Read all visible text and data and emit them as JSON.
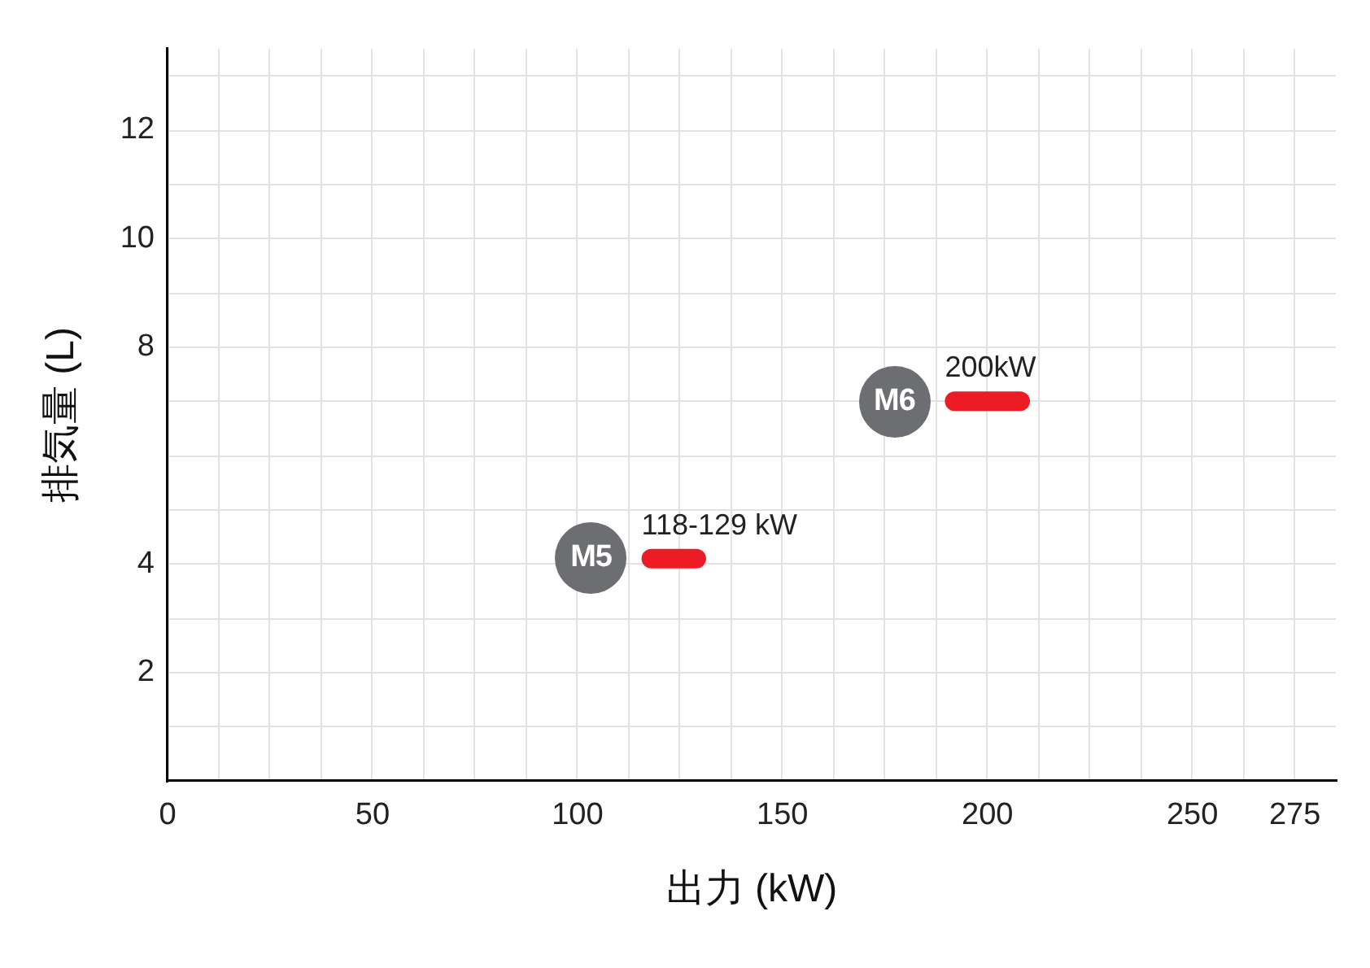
{
  "chart_data": {
    "type": "line",
    "xlabel": "出力 (kW)",
    "ylabel": "排気量 (L)",
    "xlim": [
      0,
      285
    ],
    "xticks": [
      0,
      {
        "value": 12.5,
        "label": null
      },
      {
        "value": 25,
        "label": null
      },
      {
        "value": 37.5,
        "label": null
      },
      50,
      {
        "value": 62.5,
        "label": null
      },
      {
        "value": 75,
        "label": null
      },
      {
        "value": 87.5,
        "label": null
      },
      100,
      {
        "value": 112.5,
        "label": null
      },
      {
        "value": 125,
        "label": null
      },
      {
        "value": 137.5,
        "label": null
      },
      150,
      {
        "value": 162.5,
        "label": null
      },
      {
        "value": 175,
        "label": null
      },
      {
        "value": 187.5,
        "label": null
      },
      200,
      {
        "value": 212.5,
        "label": null
      },
      {
        "value": 225,
        "label": null
      },
      {
        "value": 237.5,
        "label": null
      },
      250,
      {
        "value": 262.5,
        "label": null
      },
      275
    ],
    "ylim": [
      0,
      13.5
    ],
    "yticks": [
      {
        "value": 1,
        "label": null
      },
      2,
      {
        "value": 3,
        "label": null
      },
      4,
      {
        "value": 5,
        "label": null
      },
      {
        "value": 6,
        "label": null
      },
      {
        "value": 7,
        "label": null
      },
      8,
      {
        "value": 9,
        "label": null
      },
      10,
      {
        "value": 11,
        "label": null
      },
      12,
      {
        "value": 13,
        "label": null
      }
    ],
    "grid": true,
    "series": [
      {
        "name": "M5",
        "color": "#ed1c24",
        "x": [
          118,
          129
        ],
        "values": [
          4.1,
          4.1
        ]
      },
      {
        "name": "M6",
        "color": "#ed1c24",
        "x": [
          192,
          208
        ],
        "values": [
          7,
          7
        ]
      }
    ],
    "annotations": [
      {
        "text": "118-129 kW",
        "x": 118,
        "y": 4.1
      },
      {
        "text": "200kW",
        "x": 192,
        "y": 7
      }
    ]
  }
}
